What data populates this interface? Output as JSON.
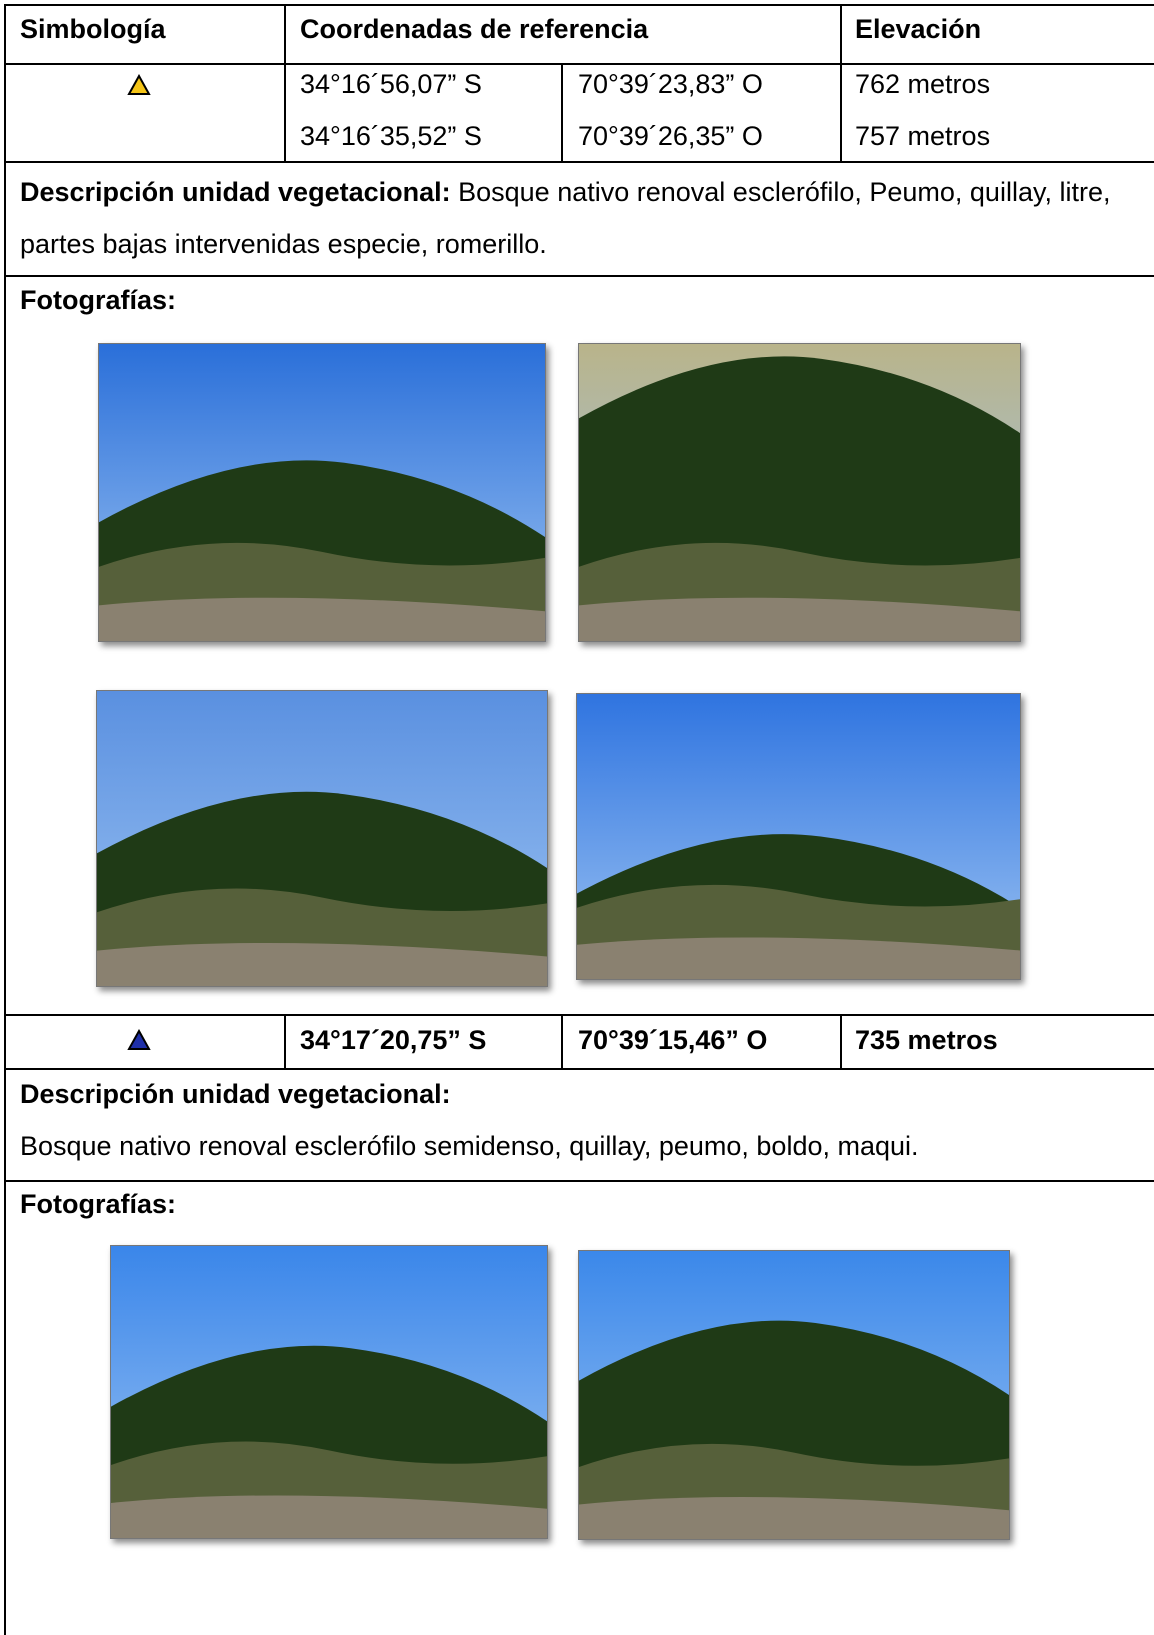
{
  "table": {
    "header": [
      "Simbología",
      "Coordenadas de referencia",
      "Elevación"
    ],
    "sites": [
      {
        "points": [
          {
            "lat": "34°16´56,07” S",
            "lon": "70°39´23,83” O",
            "elevation": "762 metros"
          },
          {
            "lat": "34°16´35,52” S",
            "lon": "70°39´26,35” O",
            "elevation": "757 metros"
          }
        ],
        "description_label": "Descripción unidad vegetacional:",
        "description": "Bosque nativo renoval esclerófilo, Peumo, quillay, litre, partes bajas  intervenidas especie, romerillo.",
        "photos_label": "Fotografías:"
      },
      {
        "points": [
          {
            "lat": "34°17´20,75” S",
            "lon": "70°39´15,46” O",
            "elevation": "735 metros"
          }
        ],
        "description_label": "Descripción unidad vegetacional:",
        "description": "Bosque nativo renoval esclerófilo semidenso, quillay, peumo, boldo, maqui.",
        "photos_label": "Fotografías:"
      }
    ]
  }
}
